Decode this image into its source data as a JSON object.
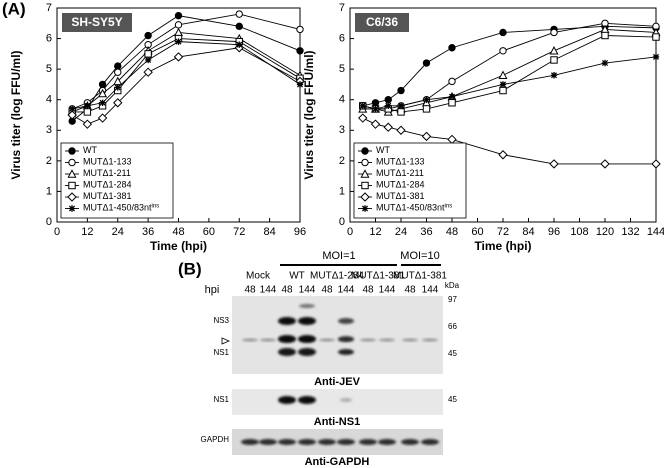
{
  "chart_data": [
    {
      "type": "line",
      "title": "SH-SY5Y",
      "xlabel": "Time (hpi)",
      "ylabel": "Virus titer (log FFU/ml)",
      "x": [
        6,
        12,
        18,
        24,
        36,
        48,
        72,
        96
      ],
      "xlim": [
        0,
        96
      ],
      "xticks": [
        0,
        12,
        24,
        36,
        48,
        60,
        72,
        84,
        96
      ],
      "ylim": [
        0,
        7
      ],
      "yticks": [
        0,
        1,
        2,
        3,
        4,
        5,
        6,
        7
      ],
      "legend": "lower left",
      "series": [
        {
          "name": "WT",
          "color": "#000000",
          "marker": "circle-filled",
          "values": [
            3.3,
            3.7,
            4.5,
            5.1,
            6.1,
            6.75,
            6.4,
            5.6
          ]
        },
        {
          "name": "MUTΔ1-133",
          "color": "#000000",
          "marker": "circle",
          "values": [
            3.7,
            3.9,
            4.3,
            4.9,
            5.8,
            6.45,
            6.8,
            6.3
          ]
        },
        {
          "name": "MUTΔ1-211",
          "color": "#000000",
          "marker": "triangle",
          "values": [
            3.6,
            3.8,
            4.2,
            4.6,
            5.6,
            6.2,
            6.0,
            4.8
          ]
        },
        {
          "name": "MUTΔ1-284",
          "color": "#000000",
          "marker": "square",
          "values": [
            3.6,
            3.6,
            3.8,
            4.3,
            5.5,
            6.0,
            5.9,
            4.7
          ]
        },
        {
          "name": "MUTΔ1-381",
          "color": "#000000",
          "marker": "diamond",
          "values": [
            3.5,
            3.2,
            3.4,
            3.9,
            4.9,
            5.4,
            5.7,
            4.6
          ]
        },
        {
          "name": "MUTΔ1-450/83nt",
          "name_superscript": "ins",
          "color": "#000000",
          "marker": "asterisk",
          "values": [
            3.7,
            3.8,
            3.9,
            4.4,
            5.3,
            5.9,
            5.8,
            4.5
          ]
        }
      ]
    },
    {
      "type": "line",
      "title": "C6/36",
      "xlabel": "Time (hpi)",
      "ylabel": "Virus titer (log FFU/ml)",
      "x": [
        6,
        12,
        18,
        24,
        36,
        48,
        72,
        96,
        120,
        144
      ],
      "xlim": [
        0,
        144
      ],
      "xticks": [
        0,
        12,
        24,
        36,
        48,
        60,
        72,
        84,
        96,
        108,
        120,
        132,
        144
      ],
      "ylim": [
        0,
        7
      ],
      "yticks": [
        0,
        1,
        2,
        3,
        4,
        5,
        6,
        7
      ],
      "legend": "lower left",
      "series": [
        {
          "name": "WT",
          "color": "#000000",
          "marker": "circle-filled",
          "values": [
            3.8,
            3.9,
            4.0,
            4.3,
            5.2,
            5.7,
            6.2,
            6.3,
            6.4,
            6.35
          ]
        },
        {
          "name": "MUTΔ1-133",
          "color": "#000000",
          "marker": "circle",
          "values": [
            3.8,
            3.7,
            3.7,
            3.8,
            4.0,
            4.6,
            5.6,
            6.2,
            6.5,
            6.4
          ]
        },
        {
          "name": "MUTΔ1-211",
          "color": "#000000",
          "marker": "triangle",
          "values": [
            3.7,
            3.7,
            3.6,
            3.7,
            3.9,
            4.1,
            4.8,
            5.6,
            6.3,
            6.2
          ]
        },
        {
          "name": "MUTΔ1-284",
          "color": "#000000",
          "marker": "square",
          "values": [
            3.8,
            3.7,
            3.7,
            3.6,
            3.7,
            3.9,
            4.3,
            5.3,
            6.1,
            6.05
          ]
        },
        {
          "name": "MUTΔ1-381",
          "color": "#000000",
          "marker": "diamond",
          "values": [
            3.4,
            3.2,
            3.1,
            3.0,
            2.8,
            2.7,
            2.2,
            1.9,
            1.9,
            1.9
          ]
        },
        {
          "name": "MUTΔ1-450/83nt",
          "name_superscript": "ins",
          "color": "#000000",
          "marker": "asterisk",
          "values": [
            3.8,
            3.7,
            3.8,
            3.8,
            4.0,
            4.1,
            4.5,
            4.8,
            5.2,
            5.4
          ]
        }
      ]
    }
  ],
  "panel_a_label": "(A)",
  "blot": {
    "label": "(B)",
    "moi": [
      "MOI=1",
      "MOI=10"
    ],
    "samples": [
      "Mock",
      "WT",
      "MUTΔ1-284",
      "MUTΔ1-381",
      "MUTΔ1-381"
    ],
    "hpi_label": "hpi",
    "lanes": [
      "48",
      "144",
      "48",
      "144",
      "48",
      "144",
      "48",
      "144",
      "48",
      "144"
    ],
    "kda_label": "kDa",
    "markers": [
      "97",
      "66",
      "45"
    ],
    "bands": [
      "NS3",
      "NS1"
    ],
    "ns1_label": "NS1",
    "ns1_marker": "45",
    "gapdh_label": "GAPDH",
    "antibodies": [
      "Anti-JEV",
      "Anti-NS1",
      "Anti-GAPDH"
    ]
  }
}
